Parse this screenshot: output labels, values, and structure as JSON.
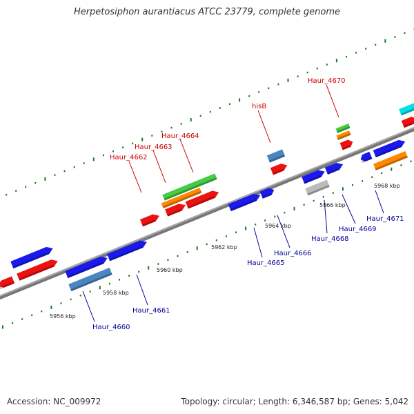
{
  "title": "Herpetosiphon aurantiacus ATCC 23779, complete genome",
  "footer": {
    "accession": "Accession: NC_009972",
    "info": "Topology: circular; Length: 6,346,587 bp; Genes: 5,042"
  },
  "colors": {
    "backbone": "#888888",
    "forward_label": "#cc0000",
    "reverse_label": "#000099",
    "tick": "#1a7a1a",
    "gene_red": "#ee1111",
    "gene_blue": "#1a1aee",
    "gene_steel": "#4a86c0",
    "gene_green": "#44cc44",
    "gene_orange": "#ff8800",
    "gene_cyan": "#00e0e8",
    "gene_gray": "#bbbbbb"
  },
  "scale_labels": [
    "5956 kbp",
    "5958 kbp",
    "5960 kbp",
    "5962 kbp",
    "5964 kbp",
    "5966 kbp",
    "5968 kbp"
  ],
  "top_labels": [
    "Haur_4662",
    "Haur_4663",
    "Haur_4664",
    "hisB",
    "Haur_4670"
  ],
  "bottom_labels": [
    "Haur_4660",
    "Haur_4661",
    "Haur_4665",
    "Haur_4666",
    "Haur_4668",
    "Haur_4669",
    "Haur_4671"
  ]
}
